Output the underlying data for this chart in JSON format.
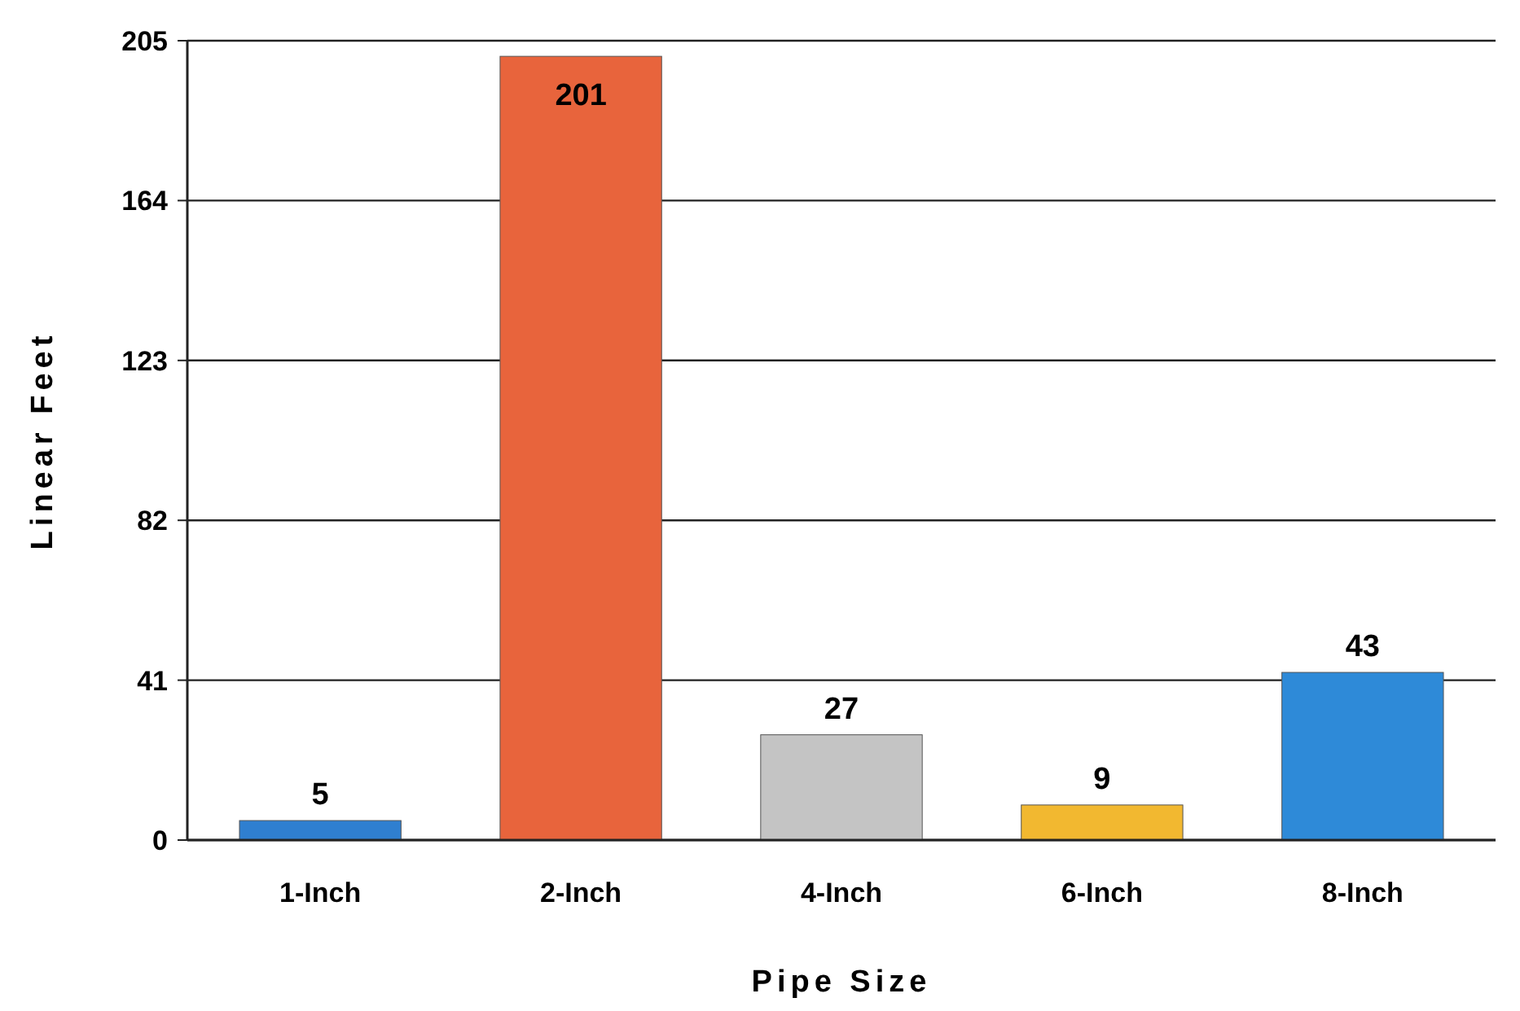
{
  "chart_data": {
    "type": "bar",
    "xlabel": "Pipe Size",
    "ylabel": "Linear Feet",
    "categories": [
      "1-Inch",
      "2-Inch",
      "4-Inch",
      "6-Inch",
      "8-Inch"
    ],
    "values": [
      5,
      201,
      27,
      9,
      43
    ],
    "colors": [
      "#2f7fd0",
      "#e8643c",
      "#c4c4c4",
      "#f2b830",
      "#2e8ad8"
    ],
    "ylim": [
      0,
      205
    ],
    "yticks": [
      0,
      41,
      82,
      123,
      164,
      205
    ],
    "grid": "y",
    "data_labels": true
  }
}
